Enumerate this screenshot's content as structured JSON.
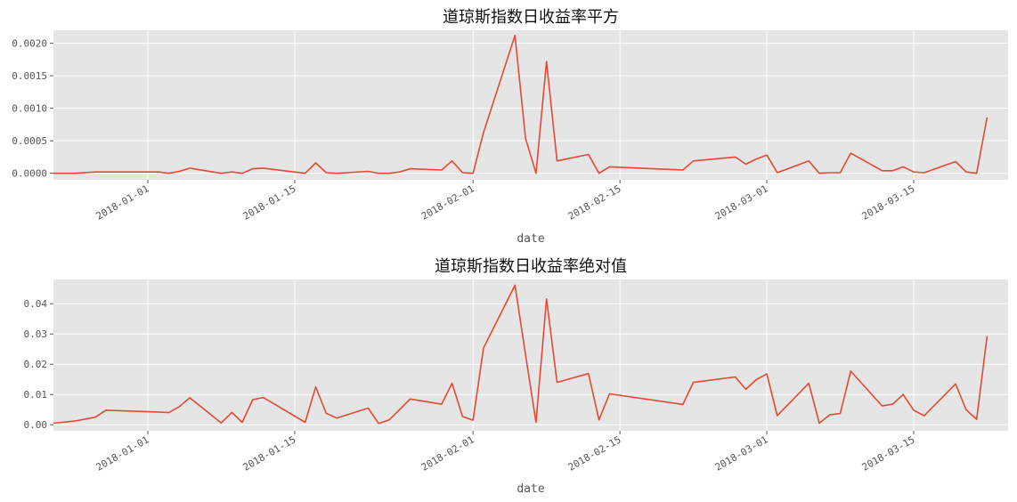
{
  "chart_data": [
    {
      "type": "line",
      "title": "道琼斯指数日收益率平方",
      "xlabel": "date",
      "ylabel": "",
      "xlim": [
        "2017-12-23",
        "2018-03-24"
      ],
      "ylim": [
        -0.0001,
        0.0022
      ],
      "y_ticks": [
        "0.0000",
        "0.0005",
        "0.0010",
        "0.0015",
        "0.0020"
      ],
      "x_ticks": [
        "2018-01-01",
        "2018-01-15",
        "2018-02-01",
        "2018-02-15",
        "2018-03-01",
        "2018-03-15"
      ],
      "grid": true,
      "color": "#e24a33",
      "series": [
        {
          "x": [
            "2017-12-23",
            "2017-12-25",
            "2017-12-27",
            "2017-12-28",
            "2018-01-02",
            "2018-01-03",
            "2018-01-04",
            "2018-01-05",
            "2018-01-08",
            "2018-01-09",
            "2018-01-10",
            "2018-01-11",
            "2018-01-12",
            "2018-01-16",
            "2018-01-17",
            "2018-01-18",
            "2018-01-19",
            "2018-01-22",
            "2018-01-23",
            "2018-01-24",
            "2018-01-25",
            "2018-01-26",
            "2018-01-29",
            "2018-01-30",
            "2018-01-31",
            "2018-02-01",
            "2018-02-02",
            "2018-02-05",
            "2018-02-06",
            "2018-02-07",
            "2018-02-08",
            "2018-02-09",
            "2018-02-12",
            "2018-02-13",
            "2018-02-14",
            "2018-02-21",
            "2018-02-22",
            "2018-02-26",
            "2018-02-27",
            "2018-02-28",
            "2018-03-01",
            "2018-03-02",
            "2018-03-05",
            "2018-03-06",
            "2018-03-07",
            "2018-03-08",
            "2018-03-09",
            "2018-03-12",
            "2018-03-13",
            "2018-03-14",
            "2018-03-15",
            "2018-03-16",
            "2018-03-19",
            "2018-03-20",
            "2018-03-21",
            "2018-03-22"
          ],
          "y": [
            0.0,
            0.0,
            2e-05,
            2e-05,
            2e-05,
            0.0,
            3e-05,
            8e-05,
            0.0,
            2e-05,
            0.0,
            7e-05,
            8e-05,
            0.0,
            0.00016,
            1e-05,
            0.0,
            3e-05,
            0.0,
            0.0,
            2e-05,
            7e-05,
            5e-05,
            0.00019,
            1e-05,
            0.0,
            0.00063,
            0.00212,
            0.00054,
            0.0,
            0.00172,
            0.00019,
            0.00029,
            0.0,
            0.0001,
            5e-05,
            0.00019,
            0.00025,
            0.00014,
            0.00022,
            0.00028,
            1e-05,
            0.00019,
            0.0,
            1e-05,
            1e-05,
            0.00031,
            4e-05,
            4e-05,
            0.0001,
            2e-05,
            1e-05,
            0.00018,
            2e-05,
            0.0,
            0.00086
          ]
        }
      ]
    },
    {
      "type": "line",
      "title": "道琼斯指数日收益率绝对值",
      "xlabel": "date",
      "ylabel": "",
      "xlim": [
        "2017-12-23",
        "2018-03-24"
      ],
      "ylim": [
        -0.002,
        0.048
      ],
      "y_ticks": [
        "0.00",
        "0.01",
        "0.02",
        "0.03",
        "0.04"
      ],
      "x_ticks": [
        "2018-01-01",
        "2018-01-15",
        "2018-02-01",
        "2018-02-15",
        "2018-03-01",
        "2018-03-15"
      ],
      "grid": true,
      "color": "#e24a33",
      "series": [
        {
          "x": [
            "2017-12-23",
            "2017-12-25",
            "2017-12-27",
            "2017-12-28",
            "2018-01-02",
            "2018-01-03",
            "2018-01-04",
            "2018-01-05",
            "2018-01-08",
            "2018-01-09",
            "2018-01-10",
            "2018-01-11",
            "2018-01-12",
            "2018-01-16",
            "2018-01-17",
            "2018-01-18",
            "2018-01-19",
            "2018-01-22",
            "2018-01-23",
            "2018-01-24",
            "2018-01-25",
            "2018-01-26",
            "2018-01-29",
            "2018-01-30",
            "2018-01-31",
            "2018-02-01",
            "2018-02-02",
            "2018-02-05",
            "2018-02-06",
            "2018-02-07",
            "2018-02-08",
            "2018-02-09",
            "2018-02-12",
            "2018-02-13",
            "2018-02-14",
            "2018-02-21",
            "2018-02-22",
            "2018-02-26",
            "2018-02-27",
            "2018-02-28",
            "2018-03-01",
            "2018-03-02",
            "2018-03-05",
            "2018-03-06",
            "2018-03-07",
            "2018-03-08",
            "2018-03-09",
            "2018-03-12",
            "2018-03-13",
            "2018-03-14",
            "2018-03-15",
            "2018-03-16",
            "2018-03-19",
            "2018-03-20",
            "2018-03-21",
            "2018-03-22"
          ],
          "y": [
            0.0005,
            0.0012,
            0.0025,
            0.0048,
            0.0042,
            0.004,
            0.006,
            0.0089,
            0.0006,
            0.0041,
            0.0008,
            0.0083,
            0.009,
            0.0008,
            0.0125,
            0.0038,
            0.0022,
            0.0055,
            0.0004,
            0.0016,
            0.005,
            0.0085,
            0.0068,
            0.0137,
            0.0027,
            0.0015,
            0.0254,
            0.0461,
            0.0232,
            0.0008,
            0.0416,
            0.014,
            0.0169,
            0.0016,
            0.0102,
            0.0067,
            0.014,
            0.0158,
            0.0117,
            0.0149,
            0.0168,
            0.003,
            0.0137,
            0.0005,
            0.0033,
            0.0037,
            0.0177,
            0.0062,
            0.0068,
            0.01,
            0.0048,
            0.003,
            0.0135,
            0.0049,
            0.0018,
            0.0293
          ]
        }
      ]
    }
  ]
}
